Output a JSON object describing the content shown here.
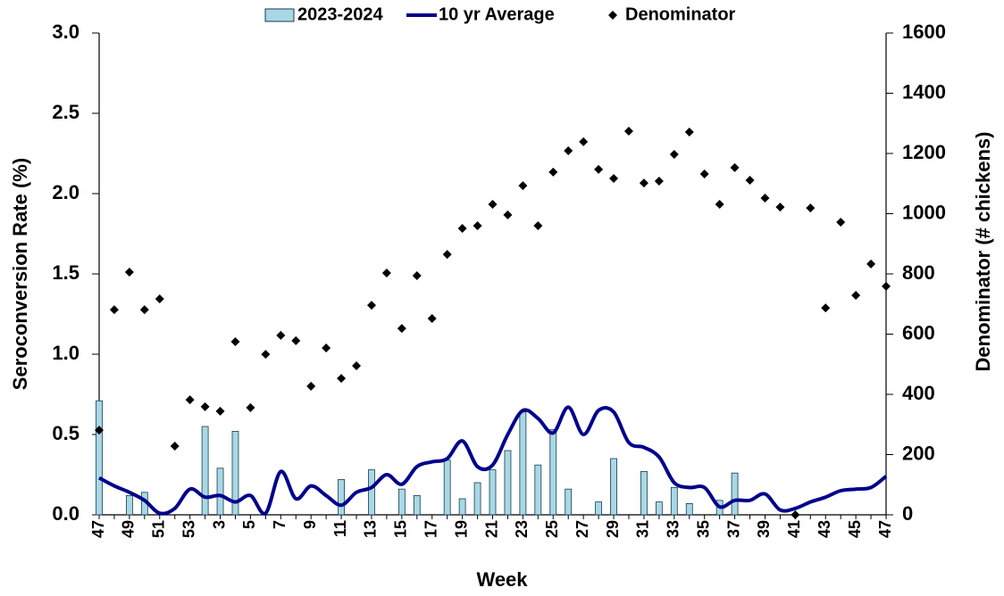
{
  "chart_data": {
    "type": "bar",
    "xlabel": "Week",
    "ylabel": "Seroconversion Rate (%)",
    "y2label": "Denominator (# chickens)",
    "categories": [
      "47",
      null,
      "49",
      null,
      "51",
      null,
      "53",
      null,
      "3",
      null,
      "5",
      null,
      "7",
      null,
      "9",
      null,
      "11",
      null,
      "13",
      null,
      "15",
      null,
      "17",
      null,
      "19",
      null,
      "21",
      null,
      "23",
      null,
      "25",
      null,
      "27",
      null,
      "29",
      null,
      "31",
      null,
      "33",
      null,
      "35",
      null,
      "37",
      null,
      "39",
      null,
      "41",
      null,
      "43",
      null,
      "45",
      null,
      "47"
    ],
    "ylim": [
      0,
      3
    ],
    "yticks": [
      {
        "value": 0,
        "label": "0.0"
      },
      0.5,
      {
        "value": 1,
        "label": "1.0"
      },
      1.5,
      {
        "value": 2,
        "label": "2.0"
      },
      2.5,
      {
        "value": 3,
        "label": "3.0"
      }
    ],
    "y2lim": [
      0,
      1600
    ],
    "y2ticks": [
      0,
      200,
      400,
      600,
      800,
      1000,
      1200,
      1400,
      1600
    ],
    "legend": "top",
    "series": [
      {
        "name": "2023-2024",
        "type": "bar",
        "color": "#a8d8e6",
        "values": [
          0.71,
          0,
          0.12,
          0.14,
          0,
          0,
          0,
          0.55,
          0.29,
          0.52,
          0,
          0,
          0,
          0,
          0,
          0,
          0.22,
          0,
          0.28,
          0,
          0.16,
          0.12,
          0,
          0.34,
          0.1,
          0.2,
          0.28,
          0.4,
          0.64,
          0.31,
          0.53,
          0.16,
          0,
          0.08,
          0.35,
          0,
          0.27,
          0.08,
          0.17,
          0.07,
          0,
          0.09,
          0.26,
          0,
          0,
          0,
          0,
          0,
          0,
          0,
          0,
          0,
          0
        ]
      },
      {
        "name": "10 yr Average",
        "type": "line",
        "color": "#00008b",
        "values": [
          0.23,
          0.18,
          0.14,
          0.09,
          0.01,
          0.04,
          0.16,
          0.11,
          0.12,
          0.08,
          0.12,
          0.01,
          0.27,
          0.1,
          0.18,
          0.12,
          0.06,
          0.14,
          0.17,
          0.25,
          0.19,
          0.3,
          0.33,
          0.35,
          0.46,
          0.3,
          0.31,
          0.5,
          0.65,
          0.6,
          0.51,
          0.67,
          0.5,
          0.65,
          0.64,
          0.45,
          0.42,
          0.36,
          0.2,
          0.17,
          0.17,
          0.05,
          0.09,
          0.09,
          0.13,
          0.03,
          0.04,
          0.08,
          0.11,
          0.15,
          0.16,
          0.17,
          0.24
        ]
      },
      {
        "name": "Denominator",
        "type": "scatter",
        "axis": "y2",
        "color": "#000000",
        "values": [
          281,
          681,
          806,
          681,
          717,
          228,
          382,
          359,
          344,
          575,
          356,
          533,
          596,
          578,
          427,
          554,
          453,
          495,
          696,
          803,
          619,
          794,
          652,
          865,
          951,
          960,
          1031,
          996,
          1093,
          960,
          1138,
          1209,
          1239,
          1147,
          1117,
          1274,
          1102,
          1108,
          1197,
          1271,
          1132,
          1031,
          1153,
          1111,
          1052,
          1022,
          0,
          1019,
          687,
          972,
          729,
          833,
          759
        ]
      }
    ]
  }
}
